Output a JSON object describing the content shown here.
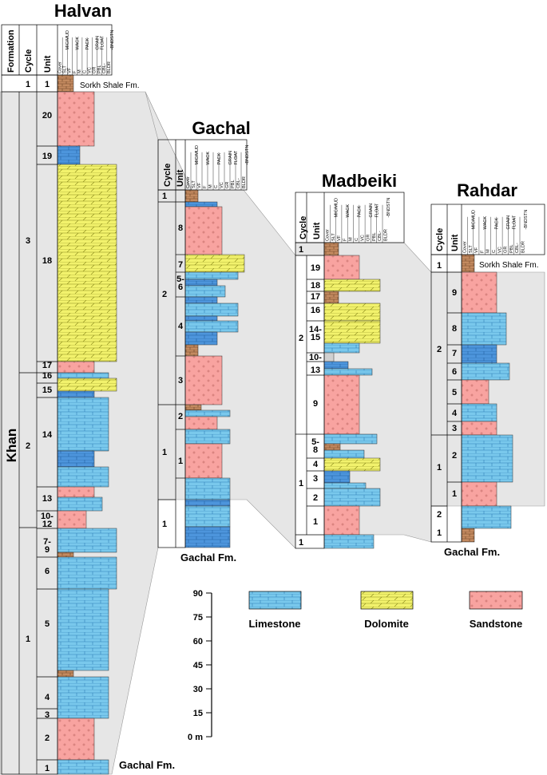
{
  "halvan": {
    "title": "Halvan",
    "col_formation": "Formation",
    "col_cycle": "Cycle",
    "col_unit": "Unit",
    "formation_khan": "Khan",
    "cycle_1_top": "1",
    "cycle_3": "3",
    "cycle_2": "2",
    "cycle_1": "1",
    "units": [
      "1",
      "20",
      "19",
      "18",
      "17",
      "16",
      "15",
      "14",
      "13",
      "10-\n12",
      "7-\n9",
      "6",
      "5",
      "4",
      "3",
      "2",
      "1"
    ],
    "top_note": "Sorkh Shale Fm.",
    "base_note": "Gachal Fm."
  },
  "gachal": {
    "title": "Gachal",
    "col_cycle": "Cycle",
    "col_unit": "Unit",
    "cycles": [
      "1",
      "2",
      "1",
      "1"
    ],
    "units": [
      "8",
      "7",
      "5-\n6",
      "4",
      "3",
      "2",
      "1"
    ],
    "base_note": "Gachal Fm."
  },
  "madbeiki": {
    "title": "Madbeiki",
    "col_cycle": "Cycle",
    "col_unit": "Unit",
    "cycles": [
      "1",
      "2",
      "1",
      "1"
    ],
    "units": [
      "19",
      "18",
      "17",
      "16",
      "14-\n15",
      "10-",
      "13",
      "9",
      "5-\n8",
      "4",
      "3",
      "2",
      "1"
    ]
  },
  "rahdar": {
    "title": "Rahdar",
    "col_cycle": "Cycle",
    "col_unit": "Unit",
    "cycles": [
      "1",
      "2",
      "1",
      "2",
      "1"
    ],
    "units": [
      "9",
      "8",
      "7",
      "6",
      "5",
      "4",
      "3",
      "2",
      "1"
    ],
    "top_note": "Sorkh Shale Fm.",
    "base_note": "Gachal Fm."
  },
  "texture_header": {
    "cover": "Cover",
    "slt": "SLT",
    "mic": "MIC/MUD",
    "vf": "VF",
    "wack": "WACK",
    "f": "F",
    "m": "M",
    "pack": "PACK",
    "c": "C",
    "vc": "VC",
    "grain": "GRAIN",
    "gr": "GR",
    "pbl": "PBL",
    "float": "FLOAT",
    "cbl": "CBL-",
    "bldr": "BLDR",
    "bndstn": "-BNDSTN"
  },
  "scale": {
    "ticks": [
      "90",
      "75",
      "60",
      "45",
      "30",
      "15",
      "0 m"
    ]
  },
  "legend": {
    "limestone": "Limestone",
    "dolomite": "Dolomite",
    "sandstone": "Sandstone"
  },
  "colors": {
    "limestone": "#79c8ec",
    "dark_limestone": "#4d95dc",
    "dolomite": "#f2f26c",
    "sandstone": "#f8a3a0",
    "shale": "#c38a60",
    "correlation": "#e6e6e6"
  }
}
